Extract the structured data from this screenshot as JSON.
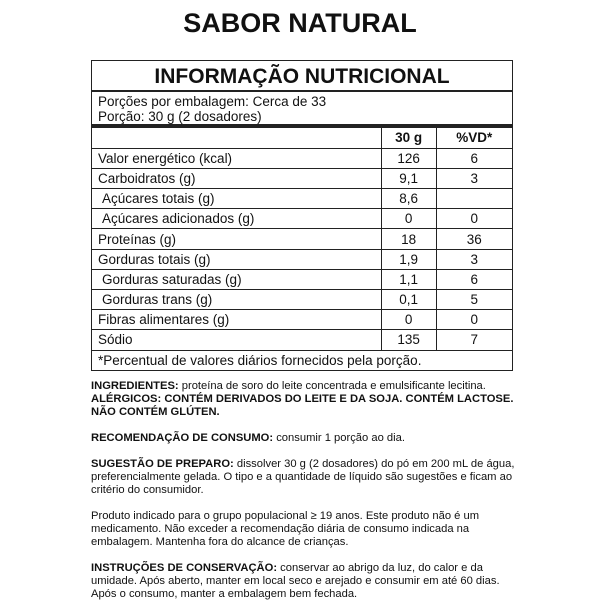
{
  "title": "SABOR NATURAL",
  "nutrition": {
    "heading": "INFORMAÇÃO NUTRICIONAL",
    "servings_per_package": "Porções por embalagem: Cerca de 33",
    "serving_size": "Porção: 30 g (2 dosadores)",
    "columns": [
      "",
      "30 g",
      "%VD*"
    ],
    "rows": [
      {
        "name": "Valor energético (kcal)",
        "amount": "126",
        "dv": "6"
      },
      {
        "name": "Carboidratos (g)",
        "amount": "9,1",
        "dv": "3"
      },
      {
        "name": "Açúcares totais (g)",
        "amount": "8,6",
        "dv": ""
      },
      {
        "name": "Açúcares adicionados (g)",
        "amount": "0",
        "dv": "0"
      },
      {
        "name": "Proteínas (g)",
        "amount": "18",
        "dv": "36"
      },
      {
        "name": "Gorduras totais (g)",
        "amount": "1,9",
        "dv": "3"
      },
      {
        "name": "Gorduras saturadas (g)",
        "amount": "1,1",
        "dv": "6"
      },
      {
        "name": "Gorduras trans (g)",
        "amount": "0,1",
        "dv": "5"
      },
      {
        "name": "Fibras alimentares (g)",
        "amount": "0",
        "dv": "0"
      },
      {
        "name": "Sódio",
        "amount": "135",
        "dv": "7"
      }
    ],
    "footnote": "*Percentual de valores diários fornecidos pela porção."
  },
  "info": {
    "ingredients_label": "INGREDIENTES:",
    "ingredients": " proteína de soro do leite concentrada e emulsificante lecitina.",
    "allergens": "ALÉRGICOS: CONTÉM DERIVADOS DO LEITE E DA SOJA. CONTÉM LACTOSE. NÃO CONTÉM GLÚTEN.",
    "recommendation_label": "RECOMENDAÇÃO DE CONSUMO:",
    "recommendation": " consumir 1 porção ao dia.",
    "preparation_label": "SUGESTÃO DE PREPARO:",
    "preparation": " dissolver 30 g (2 dosadores) do pó em 200 mL de água, preferencialmente gelada. O tipo e a quantidade de líquido são sugestões e ficam ao critério do consumidor.",
    "warning": "Produto indicado para o grupo populacional ≥ 19 anos. Este produto não é um medicamento. Não exceder a recomendação diária de consumo indicada na embalagem. Mantenha fora do alcance de crianças.",
    "storage_label": "INSTRUÇÕES DE CONSERVAÇÃO:",
    "storage": " conservar ao abrigo da luz, do calor e da umidade. Após aberto, manter em local seco e arejado e consumir em até 60 dias. Após o consumo, manter a embalagem bem fechada."
  }
}
